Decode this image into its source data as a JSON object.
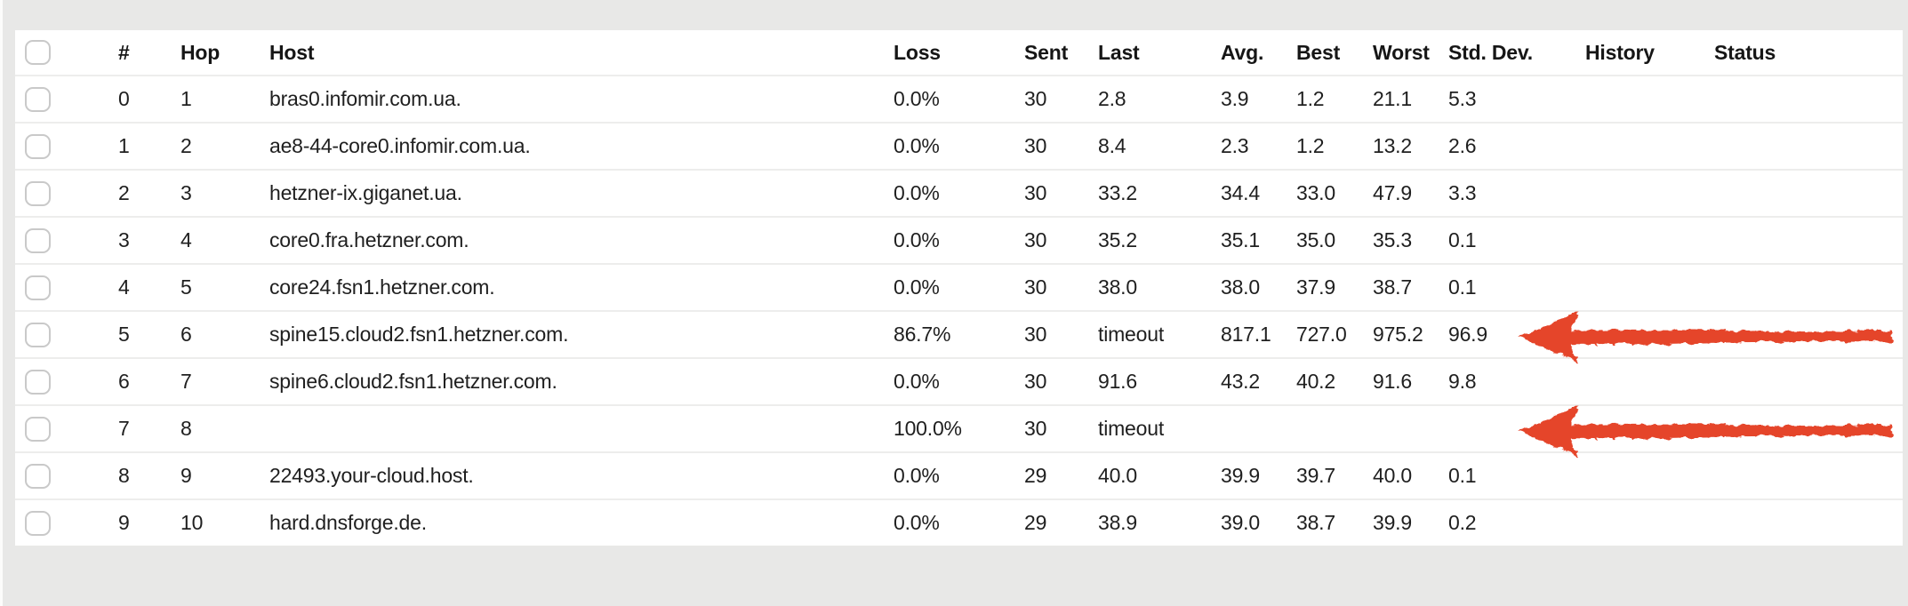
{
  "colors": {
    "page_background": "#e8e8e7",
    "card_background": "#ffffff",
    "row_separator": "#ededec",
    "text": "#1f1f1f",
    "checkbox_border": "#c9c9c9",
    "annotation_red": "#e5452c"
  },
  "table": {
    "columns": [
      {
        "key": "select",
        "label": ""
      },
      {
        "key": "index",
        "label": "#"
      },
      {
        "key": "hop",
        "label": "Hop"
      },
      {
        "key": "host",
        "label": "Host"
      },
      {
        "key": "loss",
        "label": "Loss"
      },
      {
        "key": "sent",
        "label": "Sent"
      },
      {
        "key": "last",
        "label": "Last"
      },
      {
        "key": "avg",
        "label": "Avg."
      },
      {
        "key": "best",
        "label": "Best"
      },
      {
        "key": "worst",
        "label": "Worst"
      },
      {
        "key": "stddev",
        "label": "Std. Dev."
      },
      {
        "key": "history",
        "label": "History"
      },
      {
        "key": "status",
        "label": "Status"
      }
    ],
    "rows": [
      {
        "index": "0",
        "hop": "1",
        "host": "bras0.infomir.com.ua.",
        "loss": "0.0%",
        "sent": "30",
        "last": "2.8",
        "avg": "3.9",
        "best": "1.2",
        "worst": "21.1",
        "stddev": "5.3",
        "history": "",
        "status": ""
      },
      {
        "index": "1",
        "hop": "2",
        "host": "ae8-44-core0.infomir.com.ua.",
        "loss": "0.0%",
        "sent": "30",
        "last": "8.4",
        "avg": "2.3",
        "best": "1.2",
        "worst": "13.2",
        "stddev": "2.6",
        "history": "",
        "status": ""
      },
      {
        "index": "2",
        "hop": "3",
        "host": "hetzner-ix.giganet.ua.",
        "loss": "0.0%",
        "sent": "30",
        "last": "33.2",
        "avg": "34.4",
        "best": "33.0",
        "worst": "47.9",
        "stddev": "3.3",
        "history": "",
        "status": ""
      },
      {
        "index": "3",
        "hop": "4",
        "host": "core0.fra.hetzner.com.",
        "loss": "0.0%",
        "sent": "30",
        "last": "35.2",
        "avg": "35.1",
        "best": "35.0",
        "worst": "35.3",
        "stddev": "0.1",
        "history": "",
        "status": ""
      },
      {
        "index": "4",
        "hop": "5",
        "host": "core24.fsn1.hetzner.com.",
        "loss": "0.0%",
        "sent": "30",
        "last": "38.0",
        "avg": "38.0",
        "best": "37.9",
        "worst": "38.7",
        "stddev": "0.1",
        "history": "",
        "status": ""
      },
      {
        "index": "5",
        "hop": "6",
        "host": "spine15.cloud2.fsn1.hetzner.com.",
        "loss": "86.7%",
        "sent": "30",
        "last": "timeout",
        "avg": "817.1",
        "best": "727.0",
        "worst": "975.2",
        "stddev": "96.9",
        "history": "",
        "status": ""
      },
      {
        "index": "6",
        "hop": "7",
        "host": "spine6.cloud2.fsn1.hetzner.com.",
        "loss": "0.0%",
        "sent": "30",
        "last": "91.6",
        "avg": "43.2",
        "best": "40.2",
        "worst": "91.6",
        "stddev": "9.8",
        "history": "",
        "status": ""
      },
      {
        "index": "7",
        "hop": "8",
        "host": "",
        "loss": "100.0%",
        "sent": "30",
        "last": "timeout",
        "avg": "",
        "best": "",
        "worst": "",
        "stddev": "",
        "history": "",
        "status": ""
      },
      {
        "index": "8",
        "hop": "9",
        "host": "22493.your-cloud.host.",
        "loss": "0.0%",
        "sent": "29",
        "last": "40.0",
        "avg": "39.9",
        "best": "39.7",
        "worst": "40.0",
        "stddev": "0.1",
        "history": "",
        "status": ""
      },
      {
        "index": "9",
        "hop": "10",
        "host": "hard.dnsforge.de.",
        "loss": "0.0%",
        "sent": "29",
        "last": "38.9",
        "avg": "39.0",
        "best": "38.7",
        "worst": "39.9",
        "stddev": "0.2",
        "history": "",
        "status": ""
      }
    ]
  },
  "annotations": {
    "color": "#e5452c",
    "arrows": [
      {
        "shape": "hand-drawn-arrow-left",
        "target_row_index": 5
      },
      {
        "shape": "hand-drawn-arrow-left",
        "target_row_index": 7
      }
    ]
  }
}
